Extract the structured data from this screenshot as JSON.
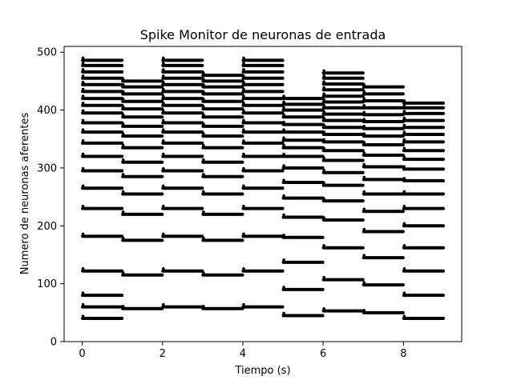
{
  "chart_data": {
    "type": "scatter",
    "title": "Spike Monitor de neuronas de entrada",
    "xlabel": "Tiempo (s)",
    "ylabel": "Numero de neuronas aferentes",
    "xlim": [
      -0.45,
      9.45
    ],
    "ylim": [
      0,
      510
    ],
    "xticks": [
      0,
      2,
      4,
      6,
      8
    ],
    "yticks": [
      0,
      100,
      200,
      300,
      400,
      500
    ],
    "grid": false,
    "marker_color": "#000000",
    "series": [
      {
        "t0": 0.0,
        "t1": 1.0,
        "rows": [
          40,
          60,
          80,
          122,
          182,
          230,
          265,
          295,
          320,
          343,
          362,
          378,
          395,
          408,
          420,
          432,
          444,
          455,
          466,
          477,
          486
        ]
      },
      {
        "t0": 1.0,
        "t1": 2.0,
        "rows": [
          57,
          115,
          175,
          220,
          255,
          285,
          310,
          335,
          355,
          372,
          388,
          402,
          415,
          428,
          440,
          450
        ]
      },
      {
        "t0": 2.0,
        "t1": 3.0,
        "rows": [
          60,
          122,
          182,
          230,
          265,
          295,
          320,
          343,
          362,
          378,
          395,
          408,
          420,
          432,
          444,
          455,
          466,
          477,
          486
        ]
      },
      {
        "t0": 3.0,
        "t1": 4.0,
        "rows": [
          57,
          115,
          175,
          220,
          255,
          285,
          310,
          335,
          355,
          372,
          388,
          402,
          415,
          428,
          440,
          450,
          460
        ]
      },
      {
        "t0": 4.0,
        "t1": 5.0,
        "rows": [
          60,
          122,
          182,
          230,
          265,
          295,
          320,
          343,
          362,
          378,
          395,
          408,
          420,
          432,
          444,
          455,
          466,
          477,
          486
        ]
      },
      {
        "t0": 5.0,
        "t1": 6.0,
        "rows": [
          45,
          90,
          137,
          180,
          215,
          248,
          275,
          300,
          320,
          335,
          348,
          362,
          375,
          388,
          400,
          410,
          420
        ]
      },
      {
        "t0": 6.0,
        "t1": 7.0,
        "rows": [
          53,
          107,
          162,
          210,
          243,
          270,
          292,
          313,
          330,
          345,
          358,
          370,
          382,
          393,
          404,
          414,
          424,
          435,
          445,
          455,
          464
        ]
      },
      {
        "t0": 7.0,
        "t1": 8.0,
        "rows": [
          50,
          98,
          145,
          190,
          225,
          255,
          280,
          302,
          322,
          340,
          355,
          368,
          380,
          392,
          404,
          416,
          428,
          440
        ]
      },
      {
        "t0": 8.0,
        "t1": 9.0,
        "rows": [
          40,
          80,
          122,
          162,
          200,
          230,
          255,
          278,
          298,
          315,
          330,
          345,
          358,
          370,
          382,
          394,
          404,
          412
        ]
      }
    ]
  }
}
